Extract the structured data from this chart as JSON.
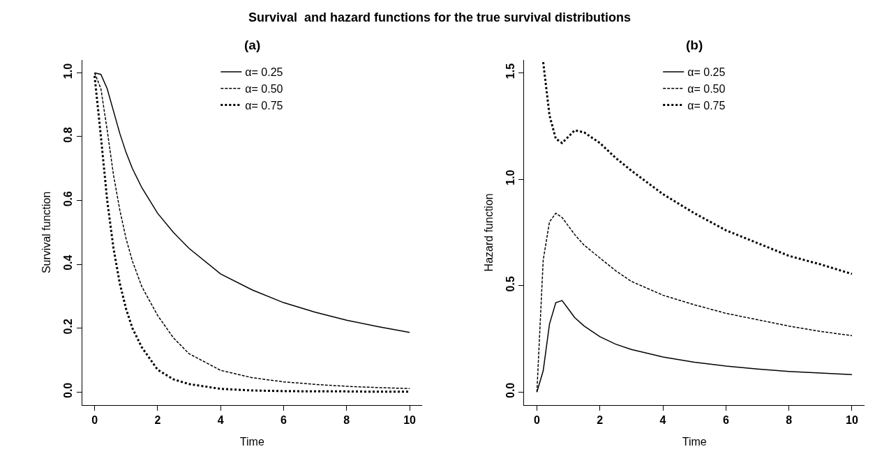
{
  "chart_data": [
    {
      "type": "line",
      "title": "(a)",
      "annotations": [
        "Survival  and hazard functions for the true survival distributions"
      ],
      "xlabel": "Time",
      "ylabel": "Survival function",
      "xlim": [
        -0.4,
        10.4
      ],
      "xticks": [
        0,
        2,
        4,
        6,
        8,
        10
      ],
      "ylim": [
        -0.04,
        1.04
      ],
      "yticks": [
        {
          "value": 0,
          "label": "0.0"
        },
        {
          "value": 0.2,
          "label": "0.2"
        },
        {
          "value": 0.4,
          "label": "0.4"
        },
        {
          "value": 0.6,
          "label": "0.6"
        },
        {
          "value": 0.8,
          "label": "0.8"
        },
        {
          "value": 1,
          "label": "1.0"
        }
      ],
      "legend": "top",
      "marker": "none",
      "x": [
        0,
        0.2,
        0.4,
        0.6,
        0.8,
        1.0,
        1.2,
        1.5,
        2,
        2.5,
        3,
        4,
        5,
        6,
        7,
        8,
        9,
        10
      ],
      "series": [
        {
          "name": "α= 0.25",
          "color": "#000000",
          "line_style": "solid",
          "values": [
            1.0,
            0.995,
            0.95,
            0.88,
            0.81,
            0.75,
            0.7,
            0.64,
            0.56,
            0.5,
            0.45,
            0.37,
            0.32,
            0.28,
            0.25,
            0.225,
            0.205,
            0.187
          ]
        },
        {
          "name": "α= 0.50",
          "color": "#000000",
          "line_style": "dashed",
          "values": [
            1.0,
            0.95,
            0.82,
            0.68,
            0.57,
            0.48,
            0.41,
            0.33,
            0.24,
            0.17,
            0.12,
            0.068,
            0.045,
            0.032,
            0.024,
            0.018,
            0.014,
            0.011
          ]
        },
        {
          "name": "α= 0.75",
          "color": "#000000",
          "line_style": "dotted",
          "values": [
            0.99,
            0.8,
            0.6,
            0.45,
            0.34,
            0.26,
            0.2,
            0.14,
            0.07,
            0.04,
            0.025,
            0.01,
            0.005,
            0.003,
            0.002,
            0.002,
            0.001,
            0.001
          ]
        }
      ]
    },
    {
      "type": "line",
      "title": "(b)",
      "xlabel": "Time",
      "ylabel": "Hazard function",
      "xlim": [
        -0.4,
        10.4
      ],
      "xticks": [
        0,
        2,
        4,
        6,
        8,
        10
      ],
      "ylim": [
        -0.06,
        1.56
      ],
      "yticks": [
        {
          "value": 0,
          "label": "0.0"
        },
        {
          "value": 0.5,
          "label": "0.5"
        },
        {
          "value": 1,
          "label": "1.0"
        },
        {
          "value": 1.5,
          "label": "1.5"
        }
      ],
      "legend": "top",
      "marker": "none",
      "x": [
        0,
        0.2,
        0.4,
        0.6,
        0.8,
        1.0,
        1.2,
        1.5,
        2,
        2.5,
        3,
        4,
        5,
        6,
        7,
        8,
        9,
        10
      ],
      "series": [
        {
          "name": "α= 0.25",
          "color": "#000000",
          "line_style": "solid",
          "values": [
            0,
            0.1,
            0.32,
            0.42,
            0.43,
            0.39,
            0.35,
            0.31,
            0.26,
            0.225,
            0.2,
            0.165,
            0.14,
            0.122,
            0.108,
            0.097,
            0.089,
            0.082
          ]
        },
        {
          "name": "α= 0.50",
          "color": "#000000",
          "line_style": "dashed",
          "values": [
            0,
            0.62,
            0.8,
            0.84,
            0.82,
            0.78,
            0.74,
            0.69,
            0.63,
            0.57,
            0.52,
            0.455,
            0.41,
            0.37,
            0.34,
            0.31,
            0.285,
            0.265
          ]
        },
        {
          "name": "α= 0.75",
          "color": "#000000",
          "line_style": "dotted",
          "x": [
            0.2,
            0.4,
            0.6,
            0.8,
            1.0,
            1.2,
            1.5,
            2,
            2.5,
            3,
            4,
            5,
            6,
            7,
            8,
            9,
            10
          ],
          "values": [
            1.55,
            1.3,
            1.19,
            1.17,
            1.2,
            1.23,
            1.22,
            1.17,
            1.1,
            1.04,
            0.93,
            0.84,
            0.76,
            0.7,
            0.64,
            0.6,
            0.555
          ]
        }
      ]
    }
  ]
}
